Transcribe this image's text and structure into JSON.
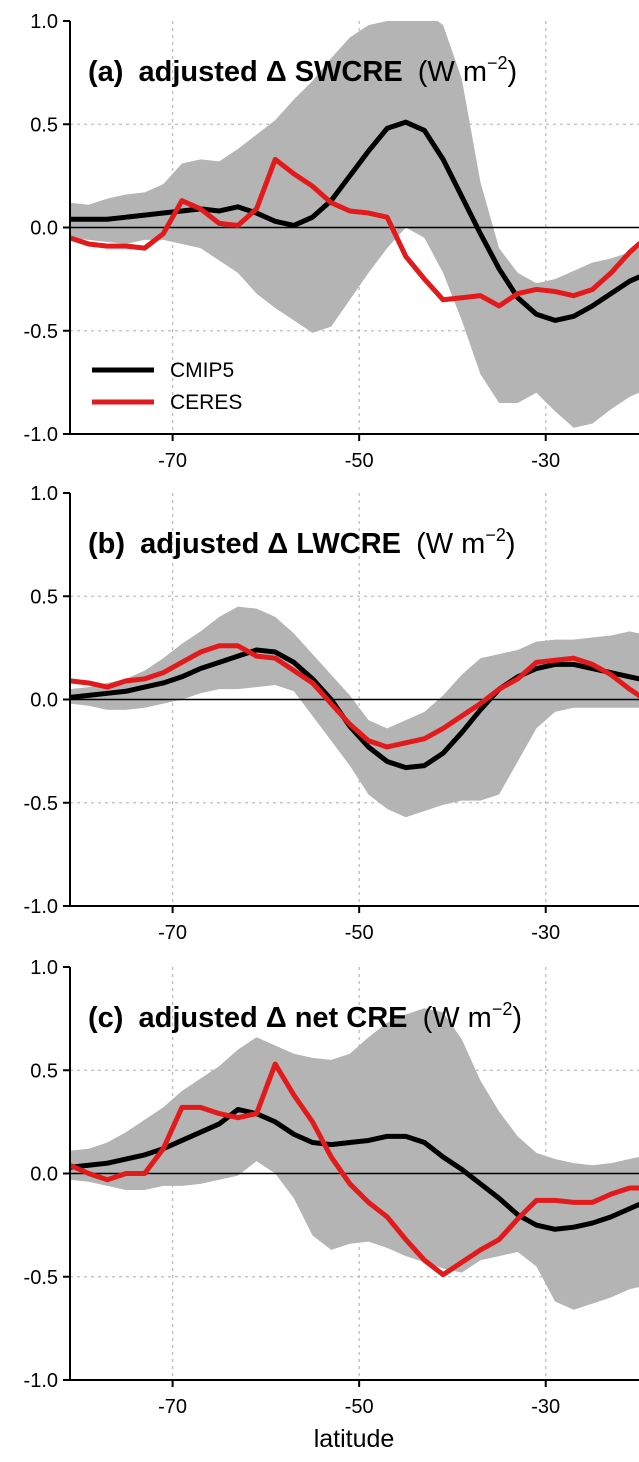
{
  "colors": {
    "cmip5": "#000000",
    "ceres": "#e31a1c",
    "spread": "#b4b4b4",
    "grid": "#bdbdbd"
  },
  "chart_data": [
    {
      "type": "line",
      "title": {
        "tag": "(a)",
        "bold": "adjusted Δ SWCRE",
        "unit": "(W m",
        "exp": "−2",
        "close": ")"
      },
      "xlim": [
        -81,
        -20
      ],
      "ylim": [
        -1.0,
        1.0
      ],
      "xticks": [
        -70,
        -50,
        -30
      ],
      "xtick_labels": [
        "-70",
        "-50",
        "-30"
      ],
      "yticks": [
        -1.0,
        -0.5,
        0.0,
        0.5,
        1.0
      ],
      "ytick_labels": [
        "-1.0",
        "-0.5",
        "0.0",
        "0.5",
        "1.0"
      ],
      "grid": true,
      "xlabel": "",
      "legend": {
        "position": "lower-left",
        "entries": [
          "CMIP5",
          "CERES"
        ]
      },
      "band_x": [
        -81,
        -79,
        -77,
        -75,
        -73,
        -71,
        -69,
        -67,
        -65,
        -63,
        -61,
        -59,
        -57,
        -55,
        -53,
        -51,
        -49,
        -47,
        -45,
        -43,
        -41,
        -39,
        -37,
        -35,
        -33,
        -31,
        -29,
        -27,
        -25,
        -23,
        -21,
        -20
      ],
      "band_upper": [
        0.12,
        0.11,
        0.14,
        0.16,
        0.17,
        0.21,
        0.31,
        0.33,
        0.32,
        0.38,
        0.45,
        0.52,
        0.62,
        0.71,
        0.82,
        0.92,
        0.98,
        1.0,
        1.02,
        1.05,
        0.98,
        0.72,
        0.22,
        -0.1,
        -0.22,
        -0.27,
        -0.25,
        -0.21,
        -0.17,
        -0.15,
        -0.12,
        -0.1
      ],
      "band_lower": [
        -0.05,
        -0.06,
        -0.07,
        -0.08,
        -0.06,
        -0.06,
        -0.08,
        -0.1,
        -0.16,
        -0.22,
        -0.32,
        -0.39,
        -0.45,
        -0.51,
        -0.48,
        -0.35,
        -0.22,
        -0.1,
        0.0,
        -0.05,
        -0.22,
        -0.45,
        -0.71,
        -0.85,
        -0.85,
        -0.8,
        -0.89,
        -0.97,
        -0.95,
        -0.88,
        -0.82,
        -0.8
      ],
      "series": [
        {
          "name": "CMIP5",
          "x": [
            -81,
            -79,
            -77,
            -75,
            -73,
            -71,
            -69,
            -67,
            -65,
            -63,
            -61,
            -59,
            -57,
            -55,
            -53,
            -51,
            -49,
            -47,
            -45,
            -43,
            -41,
            -39,
            -37,
            -35,
            -33,
            -31,
            -29,
            -27,
            -25,
            -23,
            -21,
            -20
          ],
          "y": [
            0.04,
            0.04,
            0.04,
            0.05,
            0.06,
            0.07,
            0.08,
            0.09,
            0.08,
            0.1,
            0.07,
            0.03,
            0.01,
            0.05,
            0.13,
            0.25,
            0.37,
            0.48,
            0.51,
            0.47,
            0.33,
            0.15,
            -0.03,
            -0.2,
            -0.34,
            -0.42,
            -0.45,
            -0.43,
            -0.38,
            -0.32,
            -0.26,
            -0.24
          ]
        },
        {
          "name": "CERES",
          "x": [
            -81,
            -79,
            -77,
            -75,
            -73,
            -71,
            -69,
            -67,
            -65,
            -63,
            -61,
            -59,
            -57,
            -55,
            -53,
            -51,
            -49,
            -47,
            -45,
            -43,
            -41,
            -39,
            -37,
            -35,
            -33,
            -31,
            -29,
            -27,
            -25,
            -23,
            -21,
            -20
          ],
          "y": [
            -0.05,
            -0.08,
            -0.09,
            -0.09,
            -0.1,
            -0.03,
            0.13,
            0.09,
            0.02,
            0.01,
            0.09,
            0.33,
            0.26,
            0.2,
            0.12,
            0.08,
            0.07,
            0.05,
            -0.14,
            -0.25,
            -0.35,
            -0.34,
            -0.33,
            -0.38,
            -0.32,
            -0.3,
            -0.31,
            -0.33,
            -0.3,
            -0.22,
            -0.12,
            -0.08
          ]
        }
      ]
    },
    {
      "type": "line",
      "title": {
        "tag": "(b)",
        "bold": "adjusted Δ LWCRE",
        "unit": "(W m",
        "exp": "−2",
        "close": ")"
      },
      "xlim": [
        -81,
        -20
      ],
      "ylim": [
        -1.0,
        1.0
      ],
      "xticks": [
        -70,
        -50,
        -30
      ],
      "xtick_labels": [
        "-70",
        "-50",
        "-30"
      ],
      "yticks": [
        -1.0,
        -0.5,
        0.0,
        0.5,
        1.0
      ],
      "ytick_labels": [
        "-1.0",
        "-0.5",
        "0.0",
        "0.5",
        "1.0"
      ],
      "grid": true,
      "xlabel": "",
      "band_x": [
        -81,
        -79,
        -77,
        -75,
        -73,
        -71,
        -69,
        -67,
        -65,
        -63,
        -61,
        -59,
        -57,
        -55,
        -53,
        -51,
        -49,
        -47,
        -45,
        -43,
        -41,
        -39,
        -37,
        -35,
        -33,
        -31,
        -29,
        -27,
        -25,
        -23,
        -21,
        -20
      ],
      "band_upper": [
        0.05,
        0.06,
        0.08,
        0.1,
        0.14,
        0.2,
        0.27,
        0.33,
        0.4,
        0.45,
        0.44,
        0.4,
        0.32,
        0.22,
        0.12,
        0.02,
        -0.1,
        -0.14,
        -0.1,
        -0.06,
        0.02,
        0.12,
        0.2,
        0.22,
        0.24,
        0.28,
        0.29,
        0.29,
        0.3,
        0.31,
        0.33,
        0.32
      ],
      "band_lower": [
        -0.02,
        -0.03,
        -0.05,
        -0.05,
        -0.04,
        -0.02,
        0.0,
        0.03,
        0.05,
        0.05,
        0.06,
        0.07,
        0.04,
        -0.08,
        -0.2,
        -0.32,
        -0.46,
        -0.53,
        -0.57,
        -0.54,
        -0.51,
        -0.49,
        -0.49,
        -0.46,
        -0.3,
        -0.14,
        -0.06,
        -0.04,
        -0.04,
        -0.04,
        -0.04,
        -0.04
      ],
      "series": [
        {
          "name": "CMIP5",
          "x": [
            -81,
            -79,
            -77,
            -75,
            -73,
            -71,
            -69,
            -67,
            -65,
            -63,
            -61,
            -59,
            -57,
            -55,
            -53,
            -51,
            -49,
            -47,
            -45,
            -43,
            -41,
            -39,
            -37,
            -35,
            -33,
            -31,
            -29,
            -27,
            -25,
            -23,
            -21,
            -20
          ],
          "y": [
            0.01,
            0.02,
            0.03,
            0.04,
            0.06,
            0.08,
            0.11,
            0.15,
            0.18,
            0.21,
            0.24,
            0.23,
            0.18,
            0.1,
            0.0,
            -0.13,
            -0.23,
            -0.3,
            -0.33,
            -0.32,
            -0.26,
            -0.16,
            -0.05,
            0.05,
            0.11,
            0.15,
            0.17,
            0.17,
            0.15,
            0.13,
            0.11,
            0.1
          ]
        },
        {
          "name": "CERES",
          "x": [
            -81,
            -79,
            -77,
            -75,
            -73,
            -71,
            -69,
            -67,
            -65,
            -63,
            -61,
            -59,
            -57,
            -55,
            -53,
            -51,
            -49,
            -47,
            -45,
            -43,
            -41,
            -39,
            -37,
            -35,
            -33,
            -31,
            -29,
            -27,
            -25,
            -23,
            -21,
            -20
          ],
          "y": [
            0.09,
            0.08,
            0.06,
            0.09,
            0.1,
            0.13,
            0.18,
            0.23,
            0.26,
            0.26,
            0.21,
            0.2,
            0.14,
            0.08,
            -0.02,
            -0.12,
            -0.2,
            -0.23,
            -0.21,
            -0.19,
            -0.14,
            -0.08,
            -0.02,
            0.05,
            0.1,
            0.18,
            0.19,
            0.2,
            0.17,
            0.12,
            0.05,
            0.02
          ]
        }
      ]
    },
    {
      "type": "line",
      "title": {
        "tag": "(c)",
        "bold": "adjusted Δ net CRE",
        "unit": "(W m",
        "exp": "−2",
        "close": ")"
      },
      "xlim": [
        -81,
        -20
      ],
      "ylim": [
        -1.0,
        1.0
      ],
      "xticks": [
        -70,
        -50,
        -30
      ],
      "xtick_labels": [
        "-70",
        "-50",
        "-30"
      ],
      "yticks": [
        -1.0,
        -0.5,
        0.0,
        0.5,
        1.0
      ],
      "ytick_labels": [
        "-1.0",
        "-0.5",
        "0.0",
        "0.5",
        "1.0"
      ],
      "grid": true,
      "xlabel": "latitude",
      "band_x": [
        -81,
        -79,
        -77,
        -75,
        -73,
        -71,
        -69,
        -67,
        -65,
        -63,
        -61,
        -59,
        -57,
        -55,
        -53,
        -51,
        -49,
        -47,
        -45,
        -43,
        -41,
        -39,
        -37,
        -35,
        -33,
        -31,
        -29,
        -27,
        -25,
        -23,
        -21,
        -20
      ],
      "band_upper": [
        0.11,
        0.12,
        0.15,
        0.2,
        0.26,
        0.32,
        0.4,
        0.46,
        0.52,
        0.6,
        0.66,
        0.62,
        0.58,
        0.56,
        0.55,
        0.58,
        0.66,
        0.73,
        0.77,
        0.8,
        0.78,
        0.65,
        0.45,
        0.3,
        0.18,
        0.1,
        0.07,
        0.05,
        0.04,
        0.05,
        0.07,
        0.08
      ],
      "band_lower": [
        -0.03,
        -0.04,
        -0.06,
        -0.08,
        -0.08,
        -0.06,
        -0.06,
        -0.05,
        -0.03,
        -0.01,
        0.06,
        0.0,
        -0.12,
        -0.3,
        -0.37,
        -0.34,
        -0.33,
        -0.36,
        -0.4,
        -0.43,
        -0.46,
        -0.48,
        -0.42,
        -0.4,
        -0.38,
        -0.45,
        -0.62,
        -0.66,
        -0.63,
        -0.6,
        -0.56,
        -0.55
      ],
      "series": [
        {
          "name": "CMIP5",
          "x": [
            -81,
            -79,
            -77,
            -75,
            -73,
            -71,
            -69,
            -67,
            -65,
            -63,
            -61,
            -59,
            -57,
            -55,
            -53,
            -51,
            -49,
            -47,
            -45,
            -43,
            -41,
            -39,
            -37,
            -35,
            -33,
            -31,
            -29,
            -27,
            -25,
            -23,
            -21,
            -20
          ],
          "y": [
            0.03,
            0.04,
            0.05,
            0.07,
            0.09,
            0.12,
            0.16,
            0.2,
            0.24,
            0.31,
            0.29,
            0.25,
            0.19,
            0.15,
            0.14,
            0.15,
            0.16,
            0.18,
            0.18,
            0.15,
            0.08,
            0.02,
            -0.05,
            -0.12,
            -0.2,
            -0.25,
            -0.27,
            -0.26,
            -0.24,
            -0.21,
            -0.17,
            -0.15
          ]
        },
        {
          "name": "CERES",
          "x": [
            -81,
            -79,
            -77,
            -75,
            -73,
            -71,
            -69,
            -67,
            -65,
            -63,
            -61,
            -59,
            -57,
            -55,
            -53,
            -51,
            -49,
            -47,
            -45,
            -43,
            -41,
            -39,
            -37,
            -35,
            -33,
            -31,
            -29,
            -27,
            -25,
            -23,
            -21,
            -20
          ],
          "y": [
            0.04,
            0.0,
            -0.03,
            0.0,
            0.0,
            0.12,
            0.32,
            0.32,
            0.29,
            0.27,
            0.29,
            0.53,
            0.38,
            0.25,
            0.08,
            -0.05,
            -0.14,
            -0.21,
            -0.32,
            -0.42,
            -0.49,
            -0.43,
            -0.37,
            -0.32,
            -0.22,
            -0.13,
            -0.13,
            -0.14,
            -0.14,
            -0.1,
            -0.07,
            -0.07
          ]
        }
      ]
    }
  ]
}
